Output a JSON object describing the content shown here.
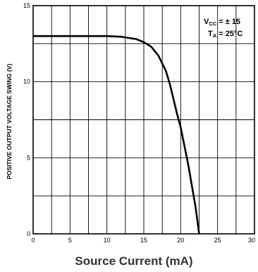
{
  "chart_data": {
    "type": "line",
    "title": "",
    "xlabel": "Source Current (mA)",
    "ylabel": "POSITIVE OUTPUT VOLTAGE SWING (V)",
    "xlim": [
      0,
      30
    ],
    "ylim": [
      0,
      15
    ],
    "x_ticks": [
      "0",
      "5",
      "10",
      "15",
      "20",
      "25",
      "30"
    ],
    "y_ticks": [
      "0",
      "5",
      "10",
      "15"
    ],
    "grid": true,
    "annotations": {
      "vcc_main": "V",
      "vcc_sub": "CC",
      "vcc_value": " = ± 15",
      "ta_main": "T",
      "ta_sub": "A",
      "ta_value": " = 25°C"
    },
    "series": [
      {
        "x": [
          0,
          5,
          10,
          12,
          14,
          15,
          16,
          17,
          18,
          18.5,
          19,
          19.5,
          20,
          21,
          22,
          22.5
        ],
        "y": [
          13.0,
          13.0,
          13.0,
          12.95,
          12.8,
          12.6,
          12.3,
          11.7,
          10.7,
          9.9,
          8.9,
          7.9,
          7.0,
          4.6,
          1.8,
          0
        ]
      }
    ]
  }
}
